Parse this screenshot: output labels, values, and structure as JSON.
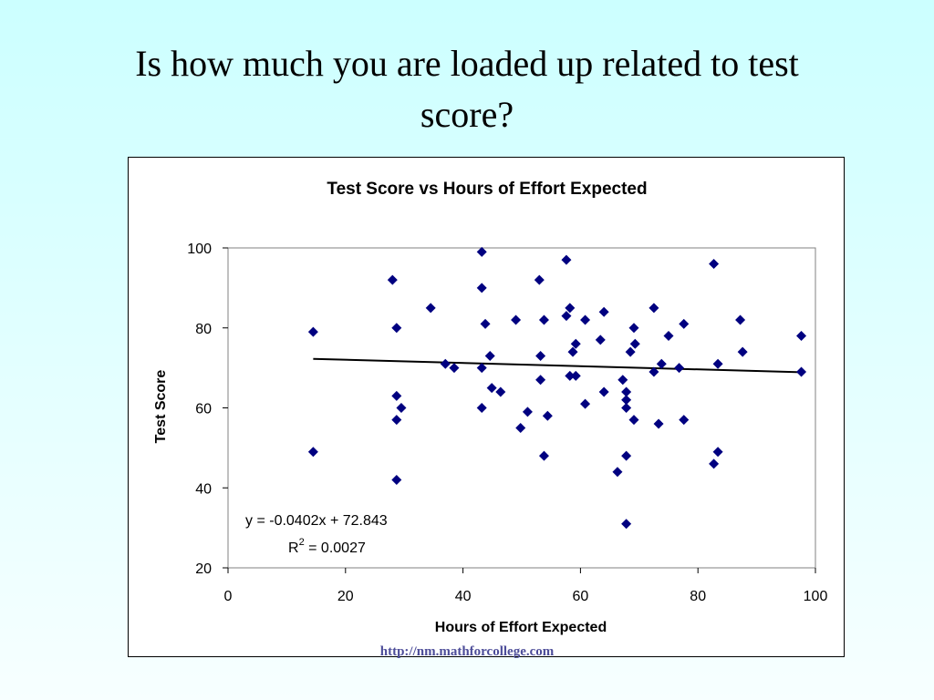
{
  "slide": {
    "title_line1": "Is how much you are loaded up related to test",
    "title_line2": "score?",
    "footer": "http://nm.mathforcollege.com"
  },
  "colors": {
    "marker": "#000080",
    "trendline": "#000000",
    "background_top": "#ccffff"
  },
  "chart_data": {
    "type": "scatter",
    "title": "Test Score vs Hours of Effort Expected",
    "xlabel": "Hours of Effort Expected",
    "ylabel": "Test Score",
    "xlim": [
      0,
      100
    ],
    "ylim": [
      20,
      100
    ],
    "xticks": [
      0,
      20,
      40,
      60,
      80,
      100
    ],
    "yticks": [
      20,
      40,
      60,
      80,
      100
    ],
    "grid": false,
    "legend": "none",
    "trendline": {
      "slope": -0.0402,
      "intercept": 72.843,
      "x_range": [
        14.5,
        97.5
      ]
    },
    "annotations": {
      "equation": "y = -0.0402x + 72.843",
      "r2_prefix": "R",
      "r2_sup": "2",
      "r2_value": " = 0.0027"
    },
    "points": [
      {
        "x": 14.5,
        "y": 79
      },
      {
        "x": 14.5,
        "y": 49
      },
      {
        "x": 28,
        "y": 92
      },
      {
        "x": 28.7,
        "y": 80
      },
      {
        "x": 28.7,
        "y": 63
      },
      {
        "x": 29.5,
        "y": 60
      },
      {
        "x": 28.7,
        "y": 57
      },
      {
        "x": 28.7,
        "y": 42
      },
      {
        "x": 34.5,
        "y": 85
      },
      {
        "x": 37,
        "y": 71
      },
      {
        "x": 38.5,
        "y": 70
      },
      {
        "x": 43.2,
        "y": 99
      },
      {
        "x": 43.2,
        "y": 90
      },
      {
        "x": 43.8,
        "y": 81
      },
      {
        "x": 44.6,
        "y": 73
      },
      {
        "x": 43.2,
        "y": 70
      },
      {
        "x": 44.9,
        "y": 65
      },
      {
        "x": 46.4,
        "y": 64
      },
      {
        "x": 43.2,
        "y": 60
      },
      {
        "x": 49,
        "y": 82
      },
      {
        "x": 49.8,
        "y": 55
      },
      {
        "x": 51,
        "y": 59
      },
      {
        "x": 53,
        "y": 92
      },
      {
        "x": 53.8,
        "y": 82
      },
      {
        "x": 53.2,
        "y": 73
      },
      {
        "x": 53.2,
        "y": 67
      },
      {
        "x": 54.4,
        "y": 58
      },
      {
        "x": 53.8,
        "y": 48
      },
      {
        "x": 57.6,
        "y": 97
      },
      {
        "x": 58.2,
        "y": 85
      },
      {
        "x": 57.6,
        "y": 83
      },
      {
        "x": 59.2,
        "y": 76
      },
      {
        "x": 58.7,
        "y": 74
      },
      {
        "x": 58.2,
        "y": 68
      },
      {
        "x": 59.2,
        "y": 68
      },
      {
        "x": 60.8,
        "y": 82
      },
      {
        "x": 60.8,
        "y": 61
      },
      {
        "x": 63.4,
        "y": 77
      },
      {
        "x": 64,
        "y": 84
      },
      {
        "x": 64,
        "y": 64
      },
      {
        "x": 66.3,
        "y": 44
      },
      {
        "x": 67.2,
        "y": 67
      },
      {
        "x": 67.8,
        "y": 64
      },
      {
        "x": 67.8,
        "y": 62
      },
      {
        "x": 67.8,
        "y": 60
      },
      {
        "x": 67.8,
        "y": 48
      },
      {
        "x": 67.8,
        "y": 31
      },
      {
        "x": 68.5,
        "y": 74
      },
      {
        "x": 69.1,
        "y": 80
      },
      {
        "x": 69.3,
        "y": 76
      },
      {
        "x": 69.1,
        "y": 57
      },
      {
        "x": 72.5,
        "y": 85
      },
      {
        "x": 72.5,
        "y": 69
      },
      {
        "x": 73.8,
        "y": 71
      },
      {
        "x": 73.3,
        "y": 56
      },
      {
        "x": 75,
        "y": 78
      },
      {
        "x": 76.8,
        "y": 70
      },
      {
        "x": 77.6,
        "y": 81
      },
      {
        "x": 77.6,
        "y": 57
      },
      {
        "x": 82.7,
        "y": 96
      },
      {
        "x": 83.4,
        "y": 71
      },
      {
        "x": 83.4,
        "y": 49
      },
      {
        "x": 82.7,
        "y": 46
      },
      {
        "x": 87.2,
        "y": 82
      },
      {
        "x": 87.6,
        "y": 74
      },
      {
        "x": 97.6,
        "y": 78
      },
      {
        "x": 97.6,
        "y": 69
      }
    ]
  }
}
